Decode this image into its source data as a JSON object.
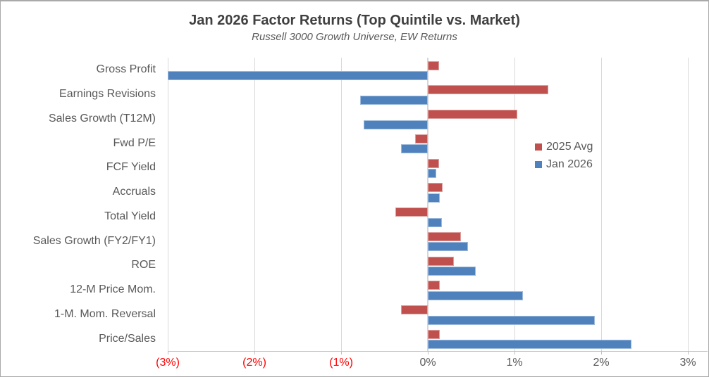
{
  "title": "Jan 2026 Factor Returns (Top Quintile vs. Market)",
  "subtitle": "Russell 3000 Growth Universe, EW Returns",
  "colors": {
    "series_2025_avg": "#C0504D",
    "series_jan_2026": "#4F81BD",
    "negative_tick_label": "#FF0000",
    "text_gray": "#595959",
    "gridline": "#D9D9D9"
  },
  "chart_data": {
    "type": "bar",
    "orientation": "horizontal",
    "title": "Jan 2026 Factor Returns (Top Quintile vs. Market)",
    "subtitle": "Russell 3000 Growth Universe, EW Returns",
    "units": "percent",
    "grid": true,
    "categories": [
      "Gross Profit",
      "Earnings Revisions",
      "Sales Growth (T12M)",
      "Fwd P/E",
      "FCF Yield",
      "Accruals",
      "Total Yield",
      "Sales Growth (FY2/FY1)",
      "ROE",
      "12-M Price Mom.",
      "1-M. Mom. Reversal",
      "Price/Sales"
    ],
    "series": [
      {
        "name": "2025 Avg",
        "color": "#C0504D",
        "values": [
          0.13,
          1.39,
          1.03,
          -0.15,
          0.13,
          0.17,
          -0.37,
          0.38,
          0.3,
          0.14,
          -0.31,
          0.14
        ]
      },
      {
        "name": "Jan 2026",
        "color": "#4F81BD",
        "values": [
          -3.0,
          -0.78,
          -0.74,
          -0.31,
          0.1,
          0.14,
          0.16,
          0.46,
          0.55,
          1.1,
          1.93,
          2.35
        ]
      }
    ],
    "x_axis": {
      "min": -3,
      "max": 3,
      "ticks": [
        {
          "label": "(3%)",
          "value": -3,
          "color": "#FF0000"
        },
        {
          "label": "(2%)",
          "value": -2,
          "color": "#FF0000"
        },
        {
          "label": "(1%)",
          "value": -1,
          "color": "#FF0000"
        },
        {
          "label": "0%",
          "value": 0,
          "color": "#595959"
        },
        {
          "label": "1%",
          "value": 1,
          "color": "#595959"
        },
        {
          "label": "2%",
          "value": 2,
          "color": "#595959"
        },
        {
          "label": "3%",
          "value": 3,
          "color": "#595959"
        }
      ]
    },
    "legend": {
      "position": "inside-right",
      "entries": [
        "2025 Avg",
        "Jan 2026"
      ]
    }
  }
}
